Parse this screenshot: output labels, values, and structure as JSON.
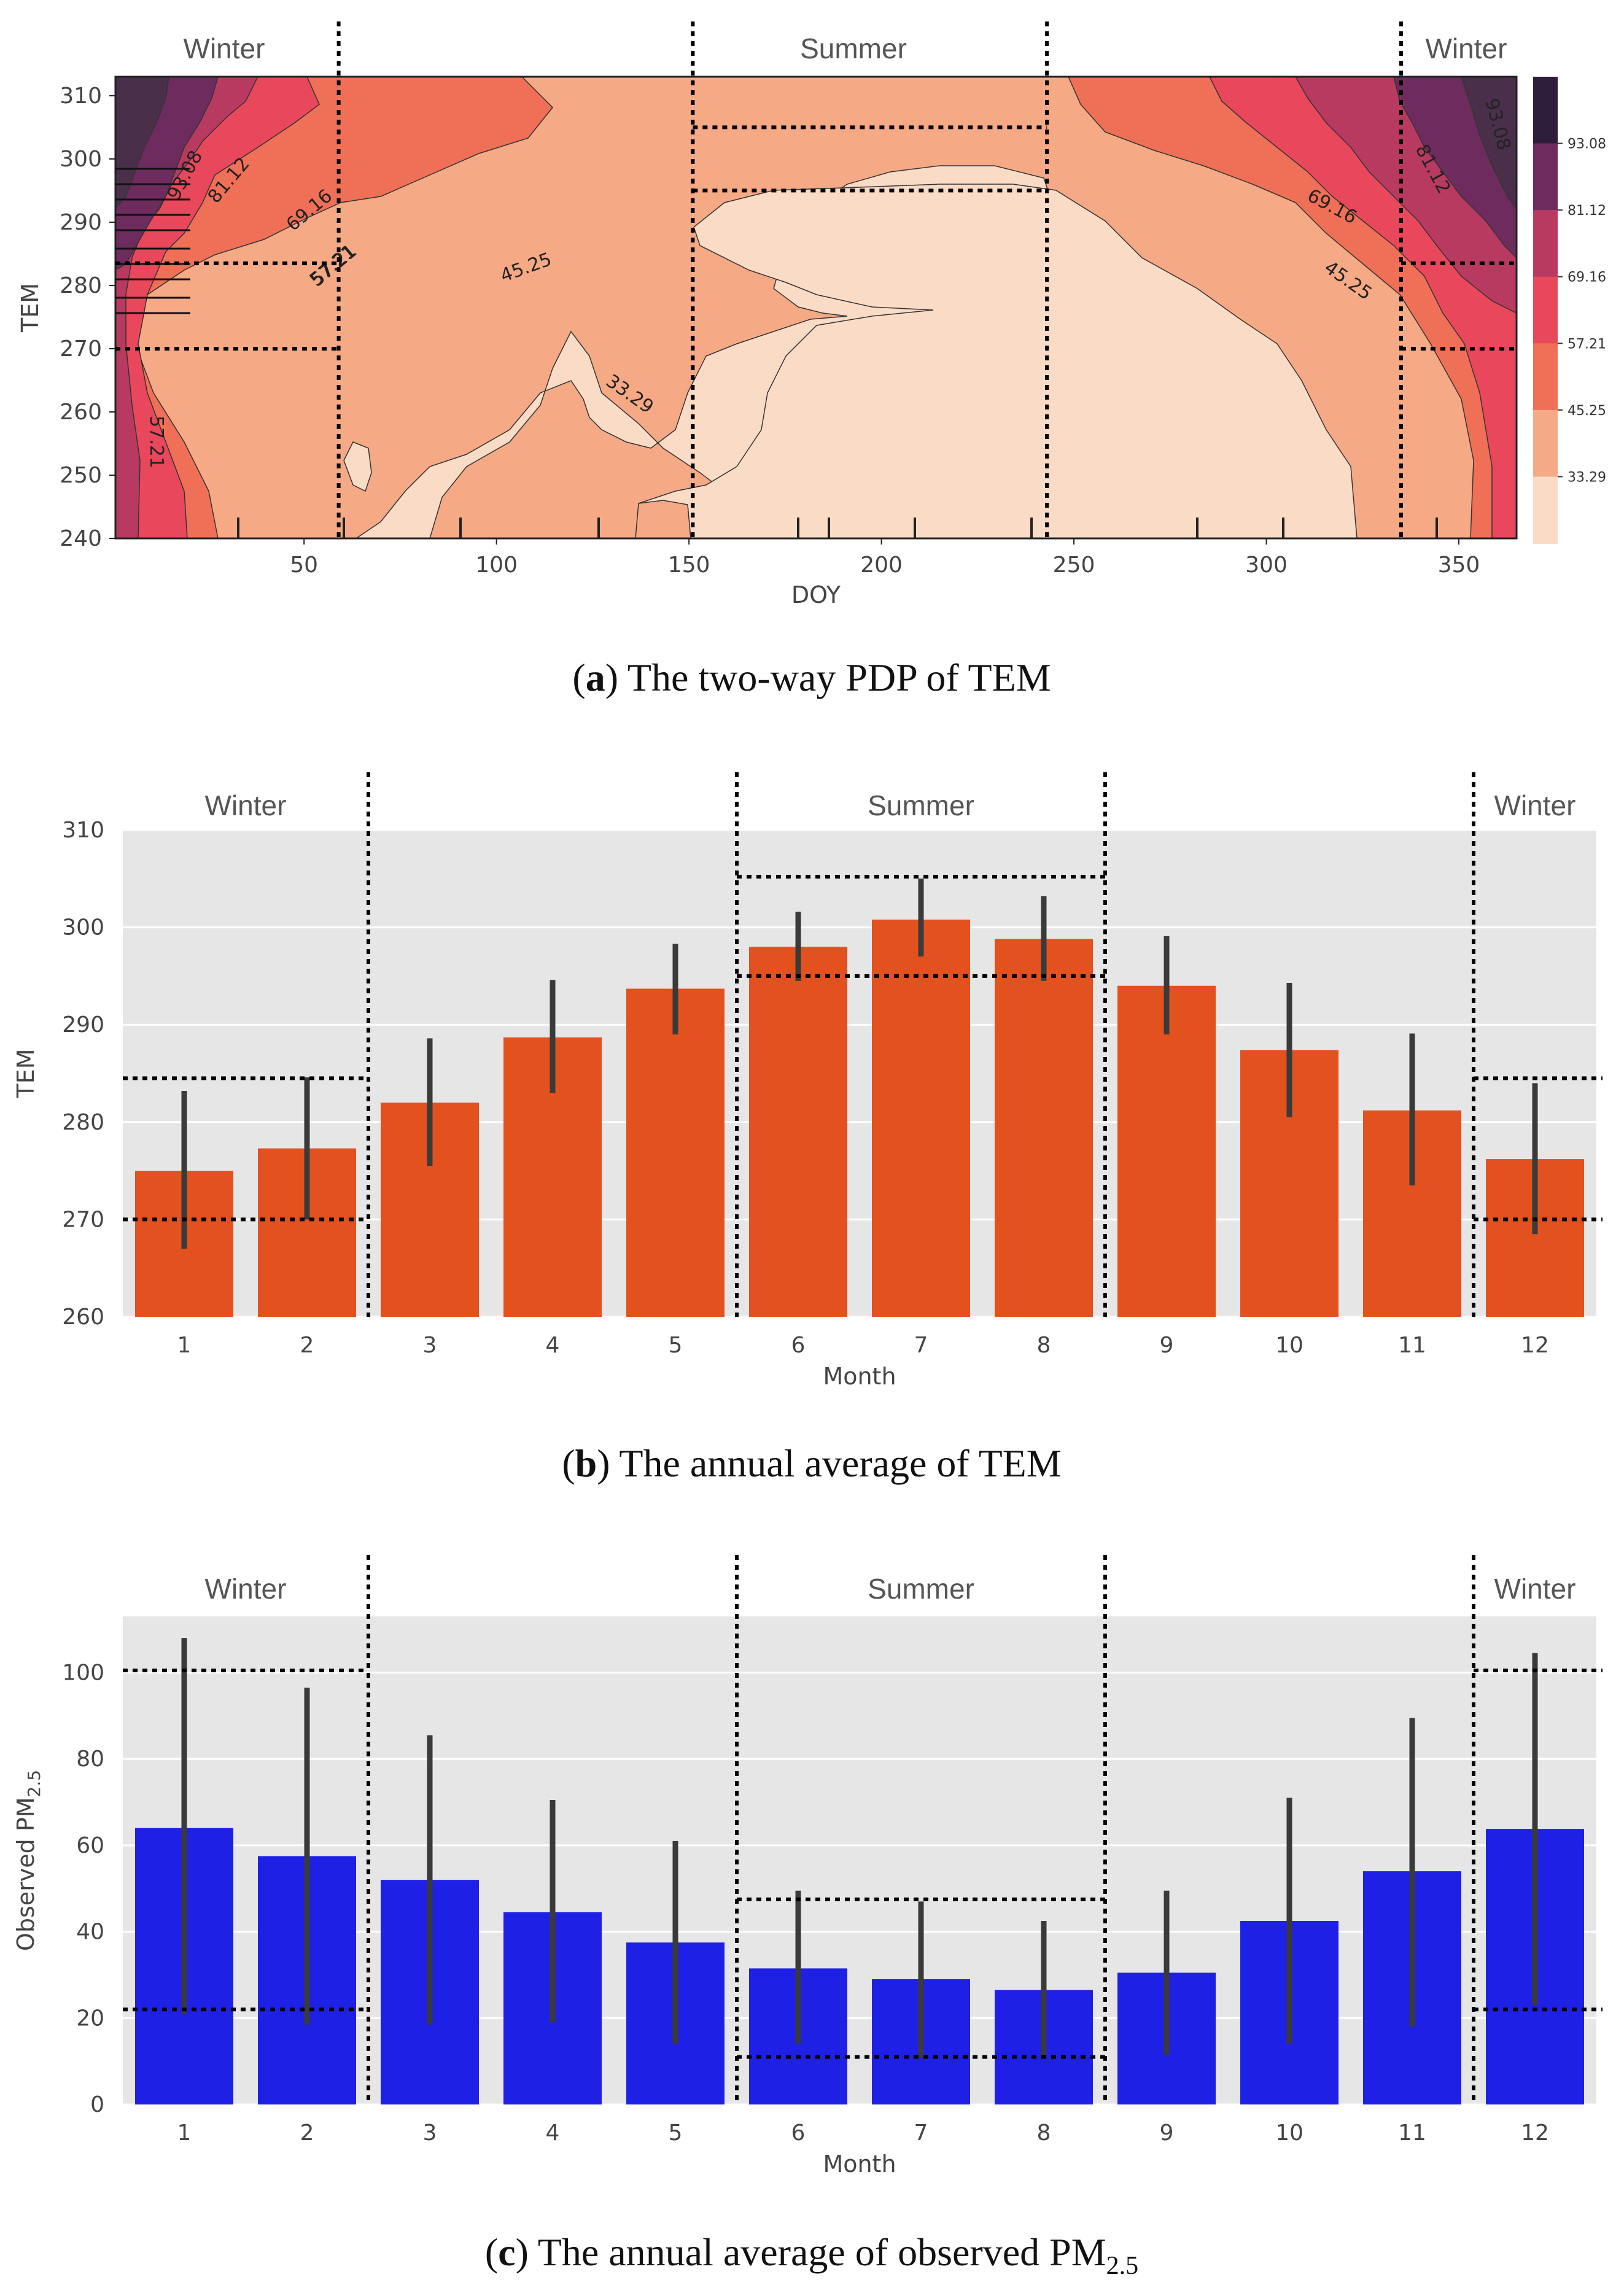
{
  "chart_data": [
    {
      "type": "heatmap",
      "title": "The two-way PDP of TEM",
      "caption_label": "a",
      "caption_text": "The two-way PDP of TEM",
      "xlabel": "DOY",
      "ylabel": "TEM",
      "xlim": [
        1,
        365
      ],
      "ylim": [
        240,
        313
      ],
      "xticks": [
        50,
        100,
        150,
        200,
        250,
        300,
        350
      ],
      "yticks": [
        240,
        250,
        260,
        270,
        280,
        290,
        300,
        310
      ],
      "contour_levels": [
        "93.08",
        "81.12",
        "69.16",
        "57.21",
        "45.25",
        "33.29"
      ],
      "level_colors": [
        "#2f1d3c",
        "#6e2c5e",
        "#b93a60",
        "#e9475b",
        "#f06f57",
        "#f5a985",
        "#fadbc6"
      ],
      "contour_labels": [
        "93.08",
        "81.12",
        "69.16",
        "57.21",
        "45.25",
        "33.29",
        "57.21",
        "57.21",
        "69.16",
        "45.25",
        "81.12",
        "93.08"
      ],
      "seasons": [
        "Winter",
        "Summer",
        "Winter"
      ],
      "season_boundaries_doy": [
        59,
        151,
        243,
        335
      ],
      "reference_lines_tem": [
        270,
        283.5
      ],
      "summer_lines_tem": [
        295,
        305
      ]
    },
    {
      "type": "bar",
      "title": "The annual average of TEM",
      "caption_label": "b",
      "caption_text": "The annual average of TEM",
      "xlabel": "Month",
      "ylabel": "TEM",
      "categories": [
        "1",
        "2",
        "3",
        "4",
        "5",
        "6",
        "7",
        "8",
        "9",
        "10",
        "11",
        "12"
      ],
      "values": [
        275,
        277.3,
        282,
        288.7,
        293.7,
        298,
        300.8,
        298.8,
        294,
        287.4,
        281.2,
        276.2
      ],
      "err_low": [
        267,
        270,
        275.5,
        283,
        289,
        294.5,
        297,
        294.5,
        289,
        280.5,
        273.5,
        268.5
      ],
      "err_high": [
        283.2,
        284.6,
        288.6,
        294.6,
        298.3,
        301.6,
        305,
        303.2,
        299.1,
        294.3,
        289.1,
        284
      ],
      "ylim": [
        260,
        310
      ],
      "yticks": [
        260,
        270,
        280,
        290,
        300,
        310
      ],
      "bar_color": "#e2511e",
      "seasons": [
        "Winter",
        "Summer",
        "Winter"
      ],
      "winter_lines": [
        270,
        284.5
      ],
      "summer_lines": [
        295,
        305.2
      ]
    },
    {
      "type": "bar",
      "title": "The annual average of observed PM2.5",
      "caption_label": "c",
      "caption_text": "The annual average of observed PM",
      "caption_sub": "2.5",
      "xlabel": "Month",
      "ylabel": "Observed PM",
      "ylabel_sub": "2.5",
      "categories": [
        "1",
        "2",
        "3",
        "4",
        "5",
        "6",
        "7",
        "8",
        "9",
        "10",
        "11",
        "12"
      ],
      "values": [
        64,
        57.5,
        52,
        44.5,
        37.5,
        31.5,
        29,
        26.5,
        30.5,
        42.5,
        54,
        63.8
      ],
      "err_low": [
        21,
        18.5,
        18.5,
        19,
        14,
        14,
        11,
        11,
        11.5,
        14,
        18,
        23
      ],
      "err_high": [
        108,
        96.5,
        85.5,
        70.5,
        61,
        49.5,
        47,
        42.5,
        49.5,
        71,
        89.5,
        104.5
      ],
      "ylim": [
        0,
        113
      ],
      "yticks": [
        0,
        20,
        40,
        60,
        80,
        100
      ],
      "bar_color": "#1f20e6",
      "seasons": [
        "Winter",
        "Summer",
        "Winter"
      ],
      "winter_lines": [
        22,
        100.5
      ],
      "summer_lines": [
        11,
        47.5
      ]
    }
  ]
}
